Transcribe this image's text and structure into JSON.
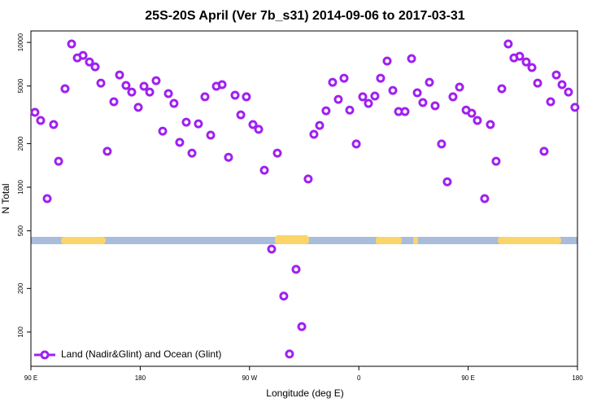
{
  "chart_data": {
    "type": "scatter",
    "title": "25S-20S April (Ver 7b_s31)   2014-09-06 to 2017-03-31",
    "x_label": "Longitude (deg E)",
    "y_label": "N Total",
    "log_y": true,
    "legend": "lower left",
    "xlim": [
      90,
      540
    ],
    "xticks": [
      {
        "value": 90,
        "label": "90 E"
      },
      180,
      {
        "value": 270,
        "label": "90 W"
      },
      {
        "value": 360,
        "label": "0"
      },
      {
        "value": 450,
        "label": "90 E"
      },
      {
        "value": 540,
        "label": "180"
      }
    ],
    "ylim": [
      58,
      12000
    ],
    "yticks": [
      100,
      200,
      500,
      1000,
      2000,
      5000,
      10000
    ],
    "series": [
      {
        "name": "Land (Nadir&Glint) and Ocean (Glint)",
        "color": "#a020f0",
        "x": [
          93.3,
          98,
          103.4,
          108.7,
          112.8,
          118.1,
          123.5,
          128.2,
          132.9,
          138.2,
          142.9,
          147.6,
          152.9,
          158.3,
          163,
          168.3,
          173,
          178.4,
          183.1,
          187.8,
          193.1,
          198.5,
          203.2,
          207.8,
          212.5,
          217.9,
          222.6,
          227.9,
          233.3,
          238,
          242.7,
          247.4,
          252.7,
          258.1,
          262.8,
          267.4,
          272.8,
          277.5,
          282.2,
          288.2,
          292.9,
          298.2,
          302.9,
          308.3,
          313,
          318.3,
          323,
          327.7,
          333,
          338.4,
          343.1,
          347.8,
          352.5,
          357.9,
          363.2,
          367.9,
          373.2,
          377.9,
          383.3,
          388,
          392.7,
          398,
          403.4,
          408.1,
          412.7,
          418.1,
          422.8,
          428.1,
          432.8,
          437.5,
          442.9,
          448.3,
          452.9,
          457.6,
          463.6,
          468.3,
          473,
          477.7,
          483,
          487.7,
          492.4,
          497.8,
          502.5,
          507.2,
          512.5,
          517.9,
          522.6,
          527.3,
          532.6,
          537.9
        ],
        "values": [
          3290,
          2890,
          834,
          2710,
          1510,
          4790,
          9750,
          7820,
          8130,
          7330,
          6780,
          5230,
          1770,
          3890,
          5960,
          5040,
          4540,
          3560,
          4980,
          4540,
          5440,
          2440,
          4430,
          3790,
          2040,
          2810,
          1720,
          2740,
          4210,
          2290,
          4980,
          5110,
          1610,
          4320,
          3160,
          4210,
          2710,
          2510,
          1310,
          374,
          1720,
          177,
          70.5,
          271,
          109,
          1140,
          2320,
          2670,
          3370,
          5300,
          4040,
          5660,
          3410,
          1990,
          4210,
          3790,
          4260,
          5660,
          7430,
          4660,
          3330,
          3330,
          7730,
          4490,
          3840,
          5300,
          3650,
          1990,
          1090,
          4210,
          4910,
          3410,
          3240,
          2890,
          834,
          2710,
          1510,
          4790,
          9750,
          7820,
          8020,
          7330,
          6700,
          5230,
          1770,
          3890,
          5960,
          5110,
          4540,
          3560
        ]
      }
    ]
  }
}
